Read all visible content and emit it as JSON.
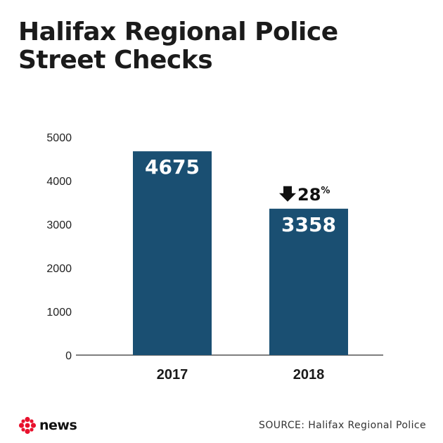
{
  "title_line1": "Halifax Regional Police",
  "title_line2": "Street Checks",
  "chart_data": {
    "type": "bar",
    "categories": [
      "2017",
      "2018"
    ],
    "values": [
      4675,
      3358
    ],
    "ylim": [
      0,
      5000
    ],
    "yticks": [
      0,
      1000,
      2000,
      3000,
      4000,
      5000
    ],
    "bar_color": "#1a4f72",
    "change_annotation": {
      "value": "28",
      "unit": "%",
      "direction": "down"
    }
  },
  "footer": {
    "logo_text": "news",
    "logo_color": "#e8112d",
    "source_label": "SOURCE:",
    "source_text": "Halifax Regional Police"
  }
}
